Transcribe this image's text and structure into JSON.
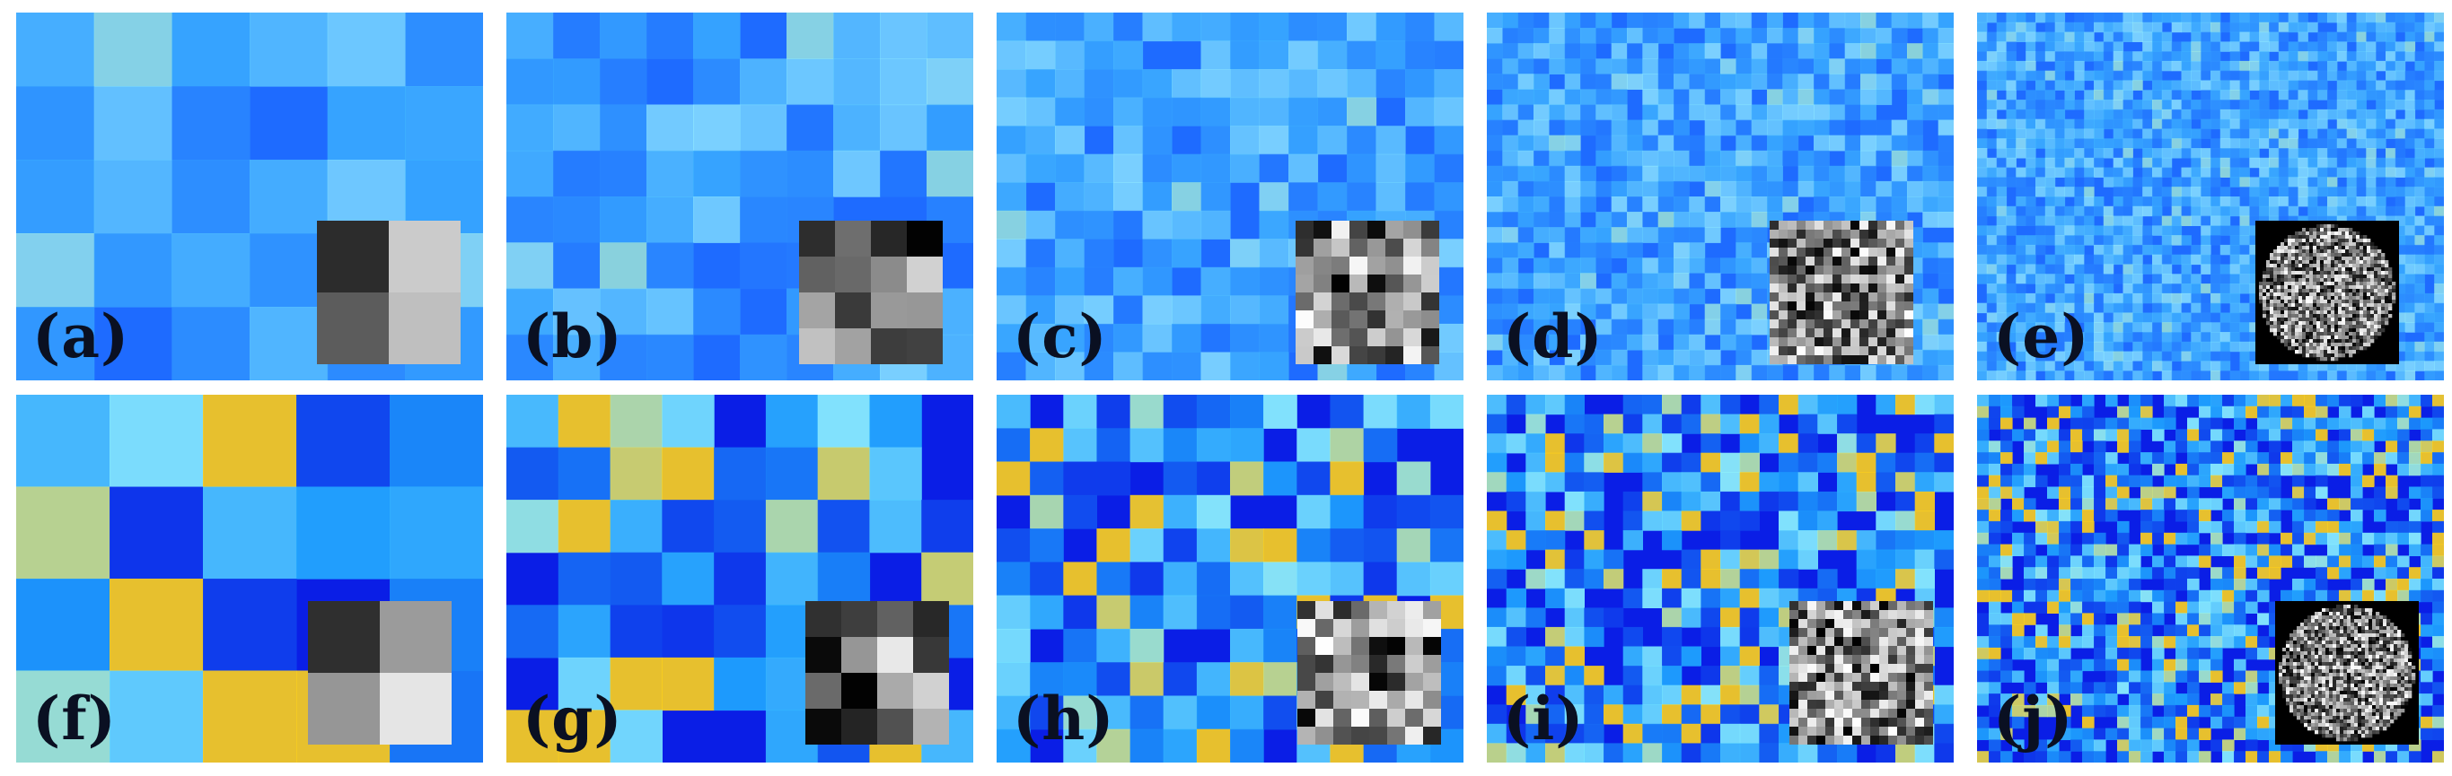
{
  "figure": {
    "rows": [
      {
        "palette": {
          "base": "#1e6bff",
          "mid": "#3fb6ff",
          "high": "#9bf2ff",
          "hot": "#e8f53a"
        },
        "panels": [
          {
            "label": "(a)",
            "inset_grid": 2,
            "inset_shape": "square",
            "noise_scale": 6
          },
          {
            "label": "(b)",
            "inset_grid": 4,
            "inset_shape": "square",
            "noise_scale": 10
          },
          {
            "label": "(c)",
            "inset_grid": 8,
            "inset_shape": "square",
            "noise_scale": 16
          },
          {
            "label": "(d)",
            "inset_grid": 16,
            "inset_shape": "square",
            "noise_scale": 30
          },
          {
            "label": "(e)",
            "inset_grid": 40,
            "inset_shape": "circle",
            "noise_scale": 48
          }
        ]
      },
      {
        "palette": {
          "base": "#0a1ee6",
          "mid": "#1fa8ff",
          "high": "#8ff7ff",
          "hot": "#ffd21a"
        },
        "panels": [
          {
            "label": "(f)",
            "inset_grid": 2,
            "inset_shape": "square",
            "noise_scale": 5
          },
          {
            "label": "(g)",
            "inset_grid": 4,
            "inset_shape": "square",
            "noise_scale": 9
          },
          {
            "label": "(h)",
            "inset_grid": 8,
            "inset_shape": "square",
            "noise_scale": 14
          },
          {
            "label": "(i)",
            "inset_grid": 16,
            "inset_shape": "square",
            "noise_scale": 24
          },
          {
            "label": "(j)",
            "inset_grid": 40,
            "inset_shape": "circle",
            "noise_scale": 40
          }
        ]
      }
    ]
  }
}
